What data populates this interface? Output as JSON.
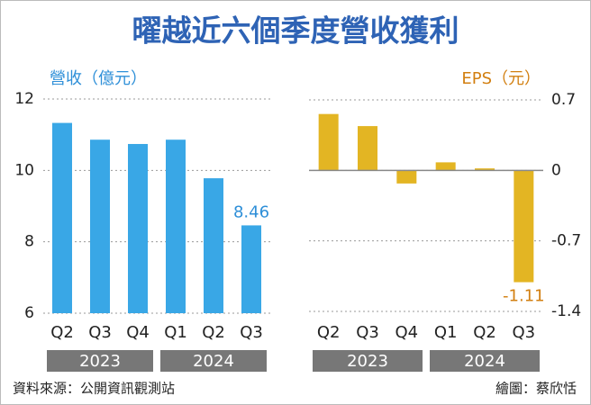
{
  "title": "曜越近六個季度營收獲利",
  "source": "資料來源：公開資訊觀測站",
  "credit": "繪圖：蔡欣恬",
  "chart_data": [
    {
      "type": "bar",
      "y_label": "營收（億元）",
      "axis_side": "left",
      "color": "#39a7e6",
      "categories": [
        "Q2",
        "Q3",
        "Q4",
        "Q1",
        "Q2",
        "Q3"
      ],
      "years": [
        "2023",
        "2024"
      ],
      "values": [
        11.33,
        10.86,
        10.74,
        10.86,
        9.78,
        8.46
      ],
      "value_labels": [
        null,
        null,
        null,
        null,
        null,
        "8.46"
      ],
      "ylim": [
        6,
        12
      ],
      "yticks": [
        6,
        8,
        10,
        12
      ],
      "grid": true,
      "zero_line": false
    },
    {
      "type": "bar",
      "y_label": "EPS（元）",
      "axis_side": "right",
      "color": "#e3b523",
      "categories": [
        "Q2",
        "Q3",
        "Q4",
        "Q1",
        "Q2",
        "Q3"
      ],
      "years": [
        "2023",
        "2024"
      ],
      "values": [
        0.56,
        0.44,
        -0.13,
        0.08,
        0.02,
        -1.11
      ],
      "value_labels": [
        null,
        null,
        null,
        null,
        null,
        "-1.11"
      ],
      "ylim": [
        -1.4,
        0.7
      ],
      "yticks": [
        0.7,
        0,
        -0.7,
        -1.4
      ],
      "grid": true,
      "zero_line": true
    }
  ]
}
